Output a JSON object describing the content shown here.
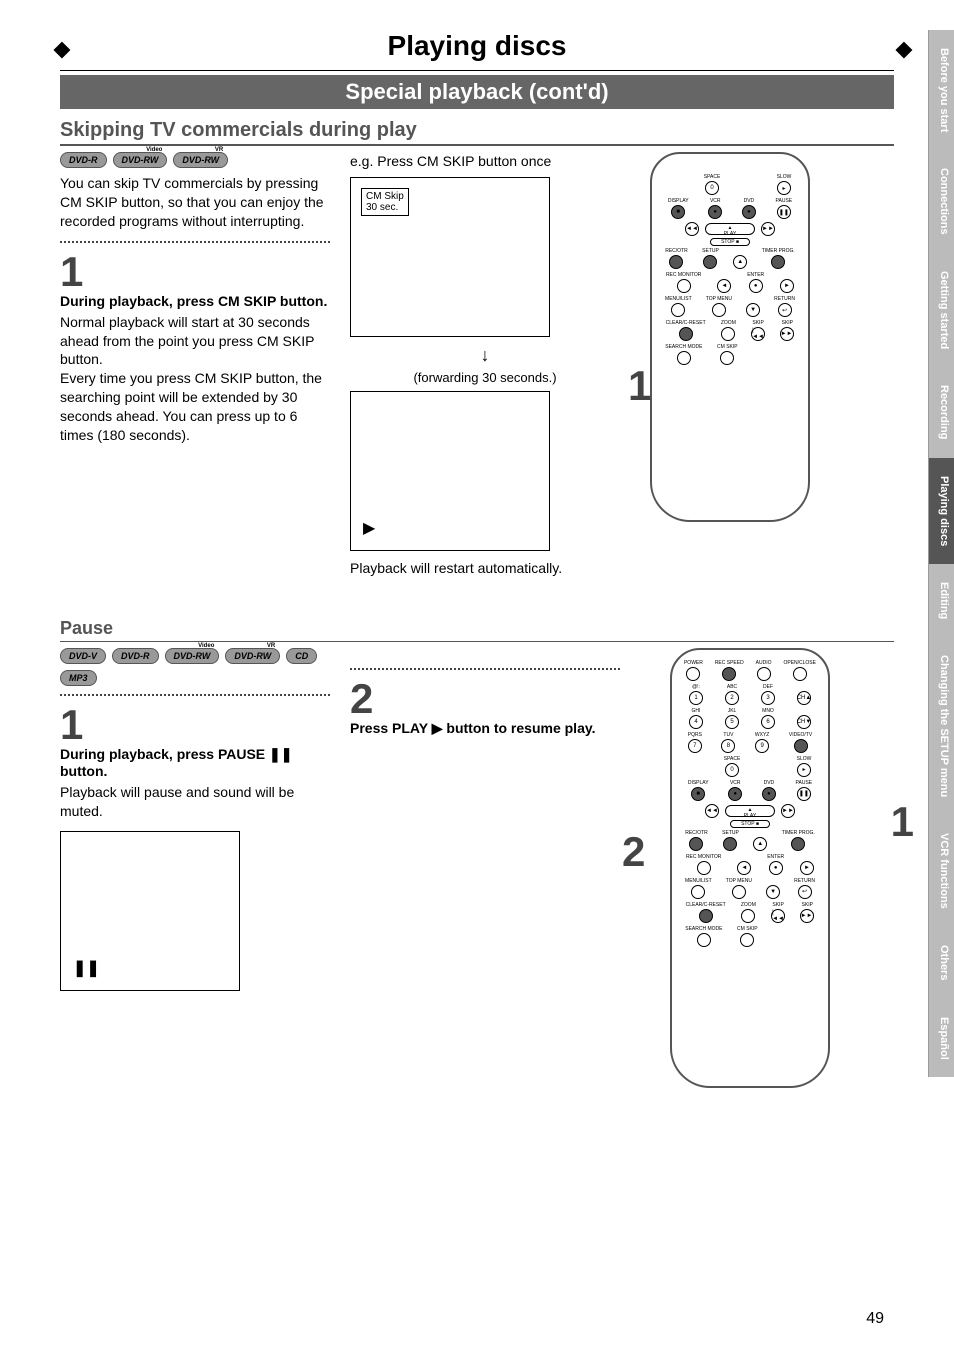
{
  "page": {
    "title": "Playing discs",
    "subtitle": "Special playback (cont'd)",
    "number": "49"
  },
  "section1": {
    "heading": "Skipping TV commercials during play",
    "badges": [
      {
        "label": "DVD-R",
        "sup": ""
      },
      {
        "label": "DVD-RW",
        "sup": "Video"
      },
      {
        "label": "DVD-RW",
        "sup": "VR"
      }
    ],
    "intro": "You can skip TV commercials by pressing CM SKIP button, so that you can enjoy the recorded programs without interrupting.",
    "step1_num": "1",
    "step1_title": "During playback, press CM SKIP button.",
    "step1_body": "Normal playback will start at 30 seconds ahead from the point you press CM SKIP button.\nEvery time you press CM SKIP button, the searching point will be extended by 30 seconds ahead. You can press up to 6 times (180 seconds).",
    "example_title": "e.g. Press CM SKIP button once",
    "cm_label_line1": "CM Skip",
    "cm_label_line2": "30 sec.",
    "forwarding": "(forwarding 30 seconds.)",
    "restart": "Playback will restart automatically.",
    "callout1": "1"
  },
  "section2": {
    "heading": "Pause",
    "badges": [
      {
        "label": "DVD-V",
        "sup": ""
      },
      {
        "label": "DVD-R",
        "sup": ""
      },
      {
        "label": "DVD-RW",
        "sup": "Video"
      },
      {
        "label": "DVD-RW",
        "sup": "VR"
      },
      {
        "label": "CD",
        "sup": ""
      },
      {
        "label": "MP3",
        "sup": ""
      }
    ],
    "step1_num": "1",
    "step1_title_a": "During playback, press PAUSE ",
    "step1_title_b": " button.",
    "step1_body": "Playback will pause and sound will be muted.",
    "step2_num": "2",
    "step2_title_a": "Press PLAY ",
    "step2_title_b": " button to resume play.",
    "callout1": "1",
    "callout2": "2"
  },
  "remote_labels": {
    "row_top": [
      "POWER",
      "REC SPEED",
      "AUDIO",
      "OPEN/CLOSE"
    ],
    "numpad": [
      [
        "@!:",
        "ABC",
        "DEF",
        ""
      ],
      [
        "1",
        "2",
        "3",
        "CH▲"
      ],
      [
        "GHI",
        "JKL",
        "MNO",
        ""
      ],
      [
        "4",
        "5",
        "6",
        "CH▼"
      ],
      [
        "PQRS",
        "TUV",
        "WXYZ",
        "VIDEO/TV"
      ],
      [
        "7",
        "8",
        "9",
        ""
      ]
    ],
    "space_row": [
      "",
      "SPACE",
      "",
      "SLOW"
    ],
    "zero_row": [
      "",
      "0",
      "",
      "▸"
    ],
    "disp_row": [
      "DISPLAY",
      "VCR",
      "DVD",
      "PAUSE"
    ],
    "play": "PLAY",
    "stop": "STOP",
    "rew": "◄◄",
    "ff": "►►",
    "rec_row": [
      "REC/OTR",
      "SETUP",
      "",
      "TIMER PROG."
    ],
    "monitor_row": [
      "REC MONITOR",
      "",
      "ENTER",
      ""
    ],
    "menu_row": [
      "MENU/LIST",
      "TOP MENU",
      "",
      "RETURN"
    ],
    "clear_row": [
      "CLEAR/C-RESET",
      "ZOOM",
      "SKIP",
      "SKIP"
    ],
    "search_row": [
      "SEARCH MODE",
      "CM SKIP",
      "",
      ""
    ]
  },
  "sidetabs": [
    {
      "label": "Before you start",
      "active": false
    },
    {
      "label": "Connections",
      "active": false
    },
    {
      "label": "Getting started",
      "active": false
    },
    {
      "label": "Recording",
      "active": false
    },
    {
      "label": "Playing discs",
      "active": true
    },
    {
      "label": "Editing",
      "active": false
    },
    {
      "label": "Changing the SETUP menu",
      "active": false
    },
    {
      "label": "VCR functions",
      "active": false
    },
    {
      "label": "Others",
      "active": false
    },
    {
      "label": "Español",
      "active": false
    }
  ],
  "colors": {
    "subtitle_bg": "#6b6b6b",
    "heading_color": "#555555",
    "tab_inactive": "#bbbbbb",
    "tab_active": "#555555"
  }
}
